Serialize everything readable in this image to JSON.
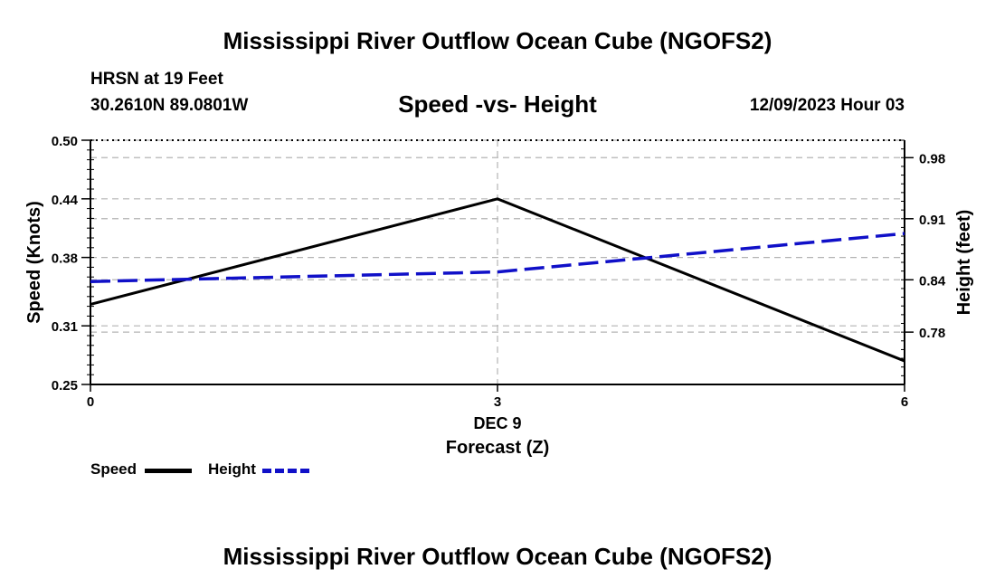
{
  "page_title": "Mississippi River Outflow Ocean Cube (NGOFS2)",
  "station": "HRSN at 19 Feet",
  "coords": "30.2610N  89.0801W",
  "datetime": "12/09/2023 Hour 03",
  "chart_data": {
    "type": "line",
    "title": "Speed -vs- Height",
    "xlabel": "Forecast (Z)",
    "x_date_label": "DEC 9",
    "x": [
      0,
      3,
      6
    ],
    "x_ticks": [
      "0",
      "3",
      "6"
    ],
    "xlim": [
      0,
      6
    ],
    "ylabel_left": "Speed (Knots)",
    "ylabel_right": "Height (feet)",
    "ylim_left": [
      0.25,
      0.5
    ],
    "yticks_left": [
      "0.25",
      "0.31",
      "0.38",
      "0.44",
      "0.50"
    ],
    "ylim_right": [
      0.72,
      1.0
    ],
    "yticks_right": [
      "0.78",
      "0.84",
      "0.91",
      "0.98"
    ],
    "grid": true,
    "series": [
      {
        "name": "Speed",
        "axis": "left",
        "style": "solid",
        "color": "#000000",
        "x": [
          0,
          3,
          6
        ],
        "values": [
          0.332,
          0.44,
          0.274
        ]
      },
      {
        "name": "Height",
        "axis": "right",
        "style": "dashed",
        "color": "#1010c8",
        "x": [
          0,
          3,
          6
        ],
        "values": [
          0.838,
          0.849,
          0.893
        ]
      }
    ],
    "legend": [
      {
        "label": "Speed",
        "color": "#000000"
      },
      {
        "label": "Height",
        "color": "#1010c8"
      }
    ]
  }
}
